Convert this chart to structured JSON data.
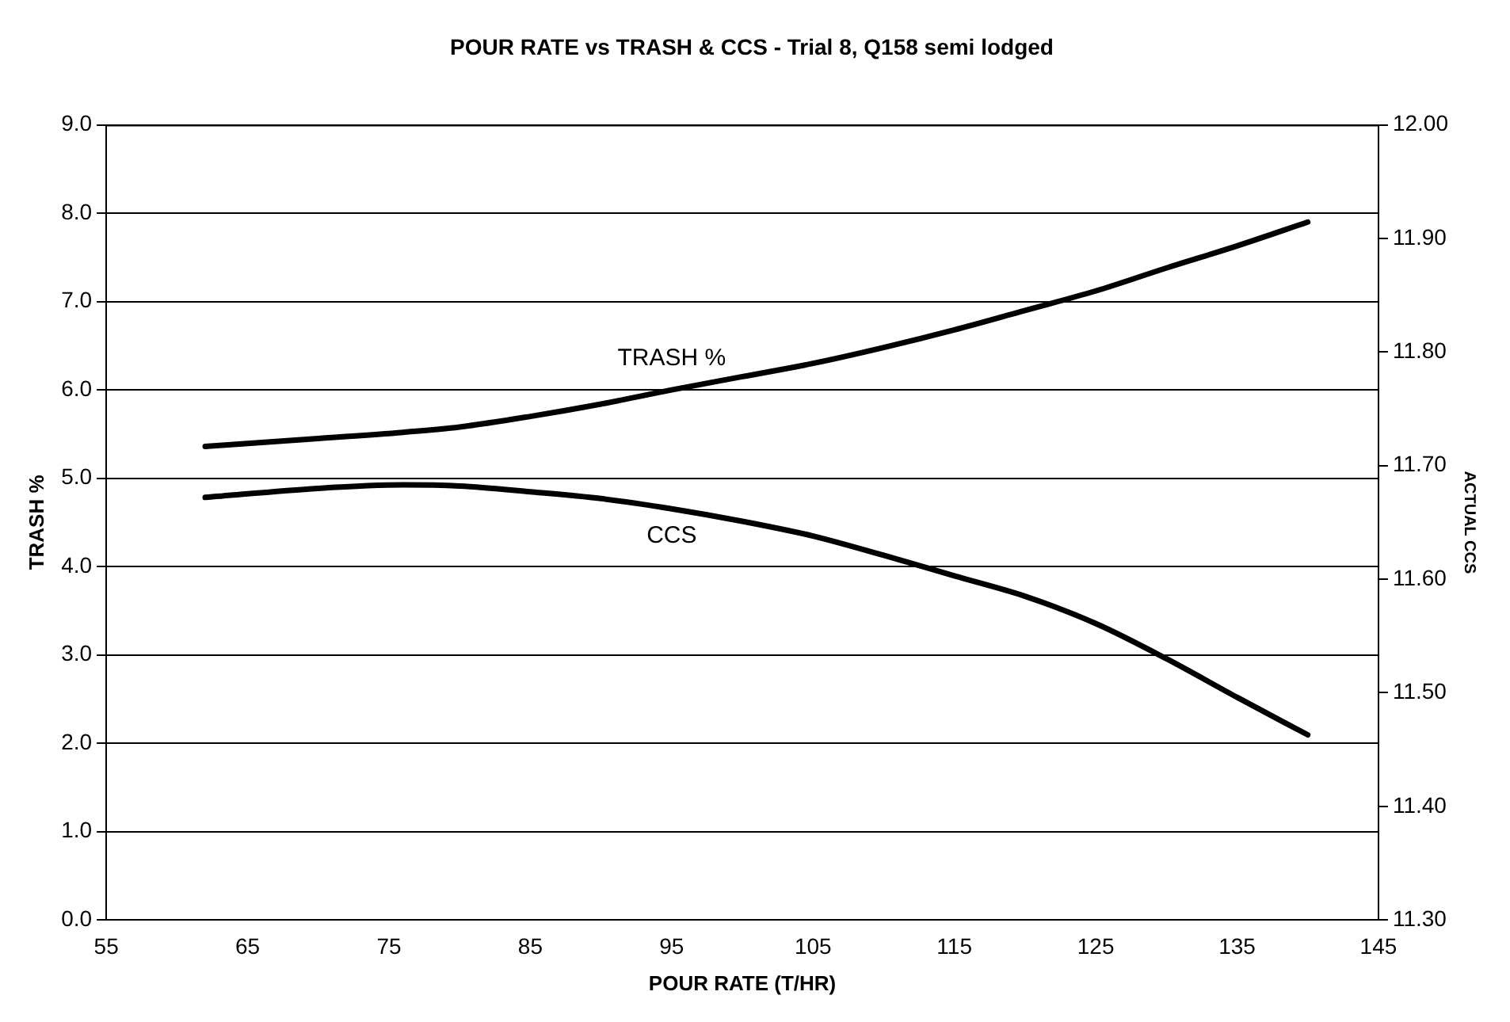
{
  "chart_data": {
    "type": "line",
    "title": "POUR RATE vs TRASH & CCS - Trial 8, Q158 semi lodged",
    "xlabel": "POUR RATE (T/HR)",
    "ylabel": "TRASH %",
    "y2label": "ACTUAL CCS",
    "x": [
      62,
      70,
      76,
      80,
      85,
      90,
      95,
      100,
      105,
      110,
      115,
      120,
      125,
      130,
      135,
      140
    ],
    "series": [
      {
        "name": "TRASH %",
        "color": "#000000",
        "values": [
          5.36,
          5.45,
          5.52,
          5.58,
          5.7,
          5.84,
          6.0,
          6.15,
          6.3,
          6.48,
          6.68,
          6.9,
          7.12,
          7.38,
          7.63,
          7.9
        ]
      },
      {
        "name": "CCS",
        "color": "#000000",
        "axis": "y2",
        "values": [
          11.672,
          11.68,
          11.683,
          11.682,
          11.677,
          11.671,
          11.662,
          11.651,
          11.638,
          11.621,
          11.603,
          11.585,
          11.561,
          11.53,
          11.496,
          11.463
        ]
      }
    ],
    "xlim": [
      55,
      145
    ],
    "xticks": [
      55,
      65,
      75,
      85,
      95,
      105,
      115,
      125,
      135,
      145
    ],
    "ylim": [
      0,
      9
    ],
    "yticks": [
      {
        "value": 0,
        "label": "0.0"
      },
      {
        "value": 1,
        "label": "1.0"
      },
      {
        "value": 2,
        "label": "2.0"
      },
      {
        "value": 3,
        "label": "3.0"
      },
      {
        "value": 4,
        "label": "4.0"
      },
      {
        "value": 5,
        "label": "5.0"
      },
      {
        "value": 6,
        "label": "6.0"
      },
      {
        "value": 7,
        "label": "7.0"
      },
      {
        "value": 8,
        "label": "8.0"
      },
      {
        "value": 9,
        "label": "9.0"
      }
    ],
    "y2lim": [
      11.3,
      12.0
    ],
    "y2ticks": [
      {
        "value": 11.3,
        "label": "11.30"
      },
      {
        "value": 11.4,
        "label": "11.40"
      },
      {
        "value": 11.5,
        "label": "11.50"
      },
      {
        "value": 11.6,
        "label": "11.60"
      },
      {
        "value": 11.7,
        "label": "11.70"
      },
      {
        "value": 11.8,
        "label": "11.80"
      },
      {
        "value": 11.9,
        "label": "11.90"
      },
      {
        "value": 12.0,
        "label": "12.00"
      }
    ],
    "grid": "y",
    "legend": false,
    "marker": "none",
    "line_style": "solid"
  }
}
